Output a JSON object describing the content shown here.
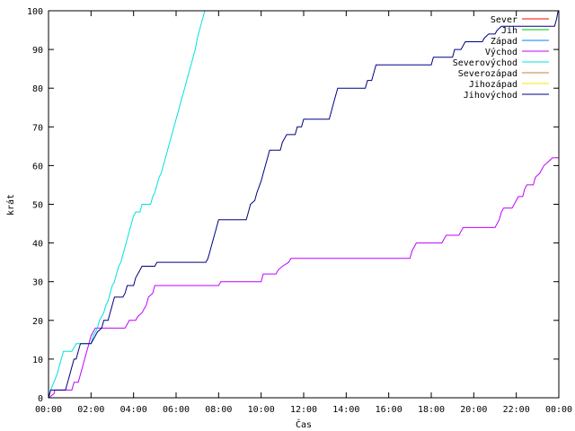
{
  "chart_data": {
    "type": "line",
    "title": "",
    "xlabel": "Čas",
    "ylabel": "krát",
    "xlim": [
      0,
      24
    ],
    "ylim": [
      0,
      100
    ],
    "x_tick_values": [
      0,
      2,
      4,
      6,
      8,
      10,
      12,
      14,
      16,
      18,
      20,
      22,
      24
    ],
    "x_tick_labels": [
      "00:00",
      "02:00",
      "04:00",
      "06:00",
      "08:00",
      "10:00",
      "12:00",
      "14:00",
      "16:00",
      "18:00",
      "20:00",
      "22:00",
      "00:00"
    ],
    "y_ticks": [
      0,
      10,
      20,
      30,
      40,
      50,
      60,
      70,
      80,
      90,
      100
    ],
    "grid": false,
    "legend_position": "top-right",
    "series": [
      {
        "name": "Sever",
        "color": "#ff0000",
        "points": []
      },
      {
        "name": "Jih",
        "color": "#00c000",
        "points": []
      },
      {
        "name": "Západ",
        "color": "#0080ff",
        "points": []
      },
      {
        "name": "Východ",
        "color": "#c000ff",
        "points": [
          [
            0,
            0
          ],
          [
            0.25,
            1
          ],
          [
            0.3,
            2
          ],
          [
            1.1,
            2
          ],
          [
            1.2,
            4
          ],
          [
            1.4,
            4
          ],
          [
            1.5,
            6
          ],
          [
            1.6,
            8
          ],
          [
            1.7,
            10
          ],
          [
            1.8,
            12
          ],
          [
            1.9,
            14
          ],
          [
            2.0,
            16
          ],
          [
            2.1,
            17
          ],
          [
            2.2,
            18
          ],
          [
            3.6,
            18
          ],
          [
            3.7,
            19
          ],
          [
            3.8,
            20
          ],
          [
            4.1,
            20
          ],
          [
            4.2,
            21
          ],
          [
            4.4,
            22
          ],
          [
            4.6,
            24
          ],
          [
            4.7,
            26
          ],
          [
            4.9,
            27
          ],
          [
            5.0,
            29
          ],
          [
            8.0,
            29
          ],
          [
            8.1,
            30
          ],
          [
            10.0,
            30
          ],
          [
            10.1,
            32
          ],
          [
            10.7,
            32
          ],
          [
            10.8,
            33
          ],
          [
            11.0,
            34
          ],
          [
            11.3,
            35
          ],
          [
            11.4,
            36
          ],
          [
            17.0,
            36
          ],
          [
            17.1,
            38
          ],
          [
            17.2,
            39
          ],
          [
            17.3,
            40
          ],
          [
            18.5,
            40
          ],
          [
            18.6,
            41
          ],
          [
            18.7,
            42
          ],
          [
            19.3,
            42
          ],
          [
            19.4,
            43
          ],
          [
            19.5,
            44
          ],
          [
            21.0,
            44
          ],
          [
            21.2,
            46
          ],
          [
            21.3,
            48
          ],
          [
            21.4,
            49
          ],
          [
            21.8,
            49
          ],
          [
            21.9,
            50
          ],
          [
            22.1,
            52
          ],
          [
            22.3,
            52
          ],
          [
            22.4,
            54
          ],
          [
            22.5,
            55
          ],
          [
            22.8,
            55
          ],
          [
            22.9,
            57
          ],
          [
            23.1,
            58
          ],
          [
            23.3,
            60
          ],
          [
            23.5,
            61
          ],
          [
            23.7,
            62
          ],
          [
            24.0,
            62
          ]
        ]
      },
      {
        "name": "Severovýchod",
        "color": "#00e0e0",
        "points": [
          [
            0,
            0
          ],
          [
            0.1,
            2
          ],
          [
            0.25,
            4
          ],
          [
            0.4,
            6
          ],
          [
            0.5,
            8
          ],
          [
            0.6,
            10
          ],
          [
            0.7,
            12
          ],
          [
            1.1,
            12
          ],
          [
            1.2,
            13
          ],
          [
            1.3,
            14
          ],
          [
            2.0,
            14
          ],
          [
            2.1,
            16
          ],
          [
            2.2,
            17
          ],
          [
            2.3,
            18
          ],
          [
            2.4,
            20
          ],
          [
            2.5,
            21
          ],
          [
            2.6,
            22
          ],
          [
            2.7,
            24
          ],
          [
            2.8,
            25
          ],
          [
            2.9,
            27
          ],
          [
            3.0,
            29
          ],
          [
            3.1,
            30
          ],
          [
            3.2,
            32
          ],
          [
            3.3,
            34
          ],
          [
            3.4,
            35
          ],
          [
            3.5,
            37
          ],
          [
            3.6,
            39
          ],
          [
            3.7,
            41
          ],
          [
            3.8,
            43
          ],
          [
            3.9,
            45
          ],
          [
            4.0,
            47
          ],
          [
            4.1,
            48
          ],
          [
            4.3,
            48
          ],
          [
            4.4,
            50
          ],
          [
            4.8,
            50
          ],
          [
            4.9,
            52
          ],
          [
            5.0,
            53
          ],
          [
            5.1,
            55
          ],
          [
            5.2,
            57
          ],
          [
            5.3,
            58
          ],
          [
            5.4,
            60
          ],
          [
            5.5,
            62
          ],
          [
            5.6,
            64
          ],
          [
            5.7,
            66
          ],
          [
            5.8,
            68
          ],
          [
            5.9,
            70
          ],
          [
            6.0,
            72
          ],
          [
            6.1,
            74
          ],
          [
            6.2,
            76
          ],
          [
            6.3,
            78
          ],
          [
            6.4,
            80
          ],
          [
            6.5,
            82
          ],
          [
            6.6,
            84
          ],
          [
            6.7,
            86
          ],
          [
            6.8,
            88
          ],
          [
            6.9,
            90
          ],
          [
            7.0,
            93
          ],
          [
            7.1,
            95
          ],
          [
            7.2,
            97
          ],
          [
            7.3,
            99
          ],
          [
            7.4,
            101
          ]
        ]
      },
      {
        "name": "Severozápad",
        "color": "#c08040",
        "points": []
      },
      {
        "name": "Jihozápad",
        "color": "#ffe000",
        "points": []
      },
      {
        "name": "Jihovýchod",
        "color": "#000080",
        "points": [
          [
            0,
            0
          ],
          [
            0.1,
            2
          ],
          [
            0.8,
            2
          ],
          [
            0.9,
            4
          ],
          [
            1.0,
            6
          ],
          [
            1.1,
            8
          ],
          [
            1.2,
            10
          ],
          [
            1.3,
            10
          ],
          [
            1.4,
            12
          ],
          [
            1.5,
            14
          ],
          [
            2.0,
            14
          ],
          [
            2.1,
            15
          ],
          [
            2.3,
            17
          ],
          [
            2.5,
            18
          ],
          [
            2.6,
            20
          ],
          [
            2.8,
            20
          ],
          [
            2.9,
            22
          ],
          [
            3.0,
            24
          ],
          [
            3.1,
            26
          ],
          [
            3.5,
            26
          ],
          [
            3.6,
            27
          ],
          [
            3.7,
            29
          ],
          [
            4.0,
            29
          ],
          [
            4.1,
            31
          ],
          [
            4.2,
            32
          ],
          [
            4.3,
            33
          ],
          [
            4.4,
            34
          ],
          [
            5.0,
            34
          ],
          [
            5.1,
            35
          ],
          [
            7.4,
            35
          ],
          [
            7.5,
            36
          ],
          [
            7.6,
            38
          ],
          [
            7.7,
            40
          ],
          [
            7.8,
            42
          ],
          [
            7.9,
            44
          ],
          [
            8.0,
            46
          ],
          [
            9.3,
            46
          ],
          [
            9.4,
            48
          ],
          [
            9.5,
            50
          ],
          [
            9.7,
            51
          ],
          [
            9.8,
            53
          ],
          [
            10.0,
            56
          ],
          [
            10.1,
            58
          ],
          [
            10.2,
            60
          ],
          [
            10.3,
            62
          ],
          [
            10.4,
            64
          ],
          [
            10.9,
            64
          ],
          [
            11.0,
            66
          ],
          [
            11.1,
            67
          ],
          [
            11.2,
            68
          ],
          [
            11.6,
            68
          ],
          [
            11.7,
            70
          ],
          [
            11.9,
            70
          ],
          [
            12.0,
            72
          ],
          [
            13.2,
            72
          ],
          [
            13.3,
            74
          ],
          [
            13.4,
            76
          ],
          [
            13.5,
            78
          ],
          [
            13.6,
            80
          ],
          [
            14.9,
            80
          ],
          [
            15.0,
            82
          ],
          [
            15.2,
            82
          ],
          [
            15.3,
            84
          ],
          [
            15.4,
            86
          ],
          [
            18.0,
            86
          ],
          [
            18.1,
            88
          ],
          [
            19.0,
            88
          ],
          [
            19.1,
            90
          ],
          [
            19.4,
            90
          ],
          [
            19.5,
            91
          ],
          [
            19.6,
            92
          ],
          [
            20.4,
            92
          ],
          [
            20.5,
            93
          ],
          [
            20.7,
            94
          ],
          [
            21.0,
            94
          ],
          [
            21.1,
            95
          ],
          [
            21.3,
            96
          ],
          [
            23.8,
            96
          ],
          [
            23.9,
            98
          ],
          [
            24.0,
            101
          ]
        ]
      }
    ]
  }
}
